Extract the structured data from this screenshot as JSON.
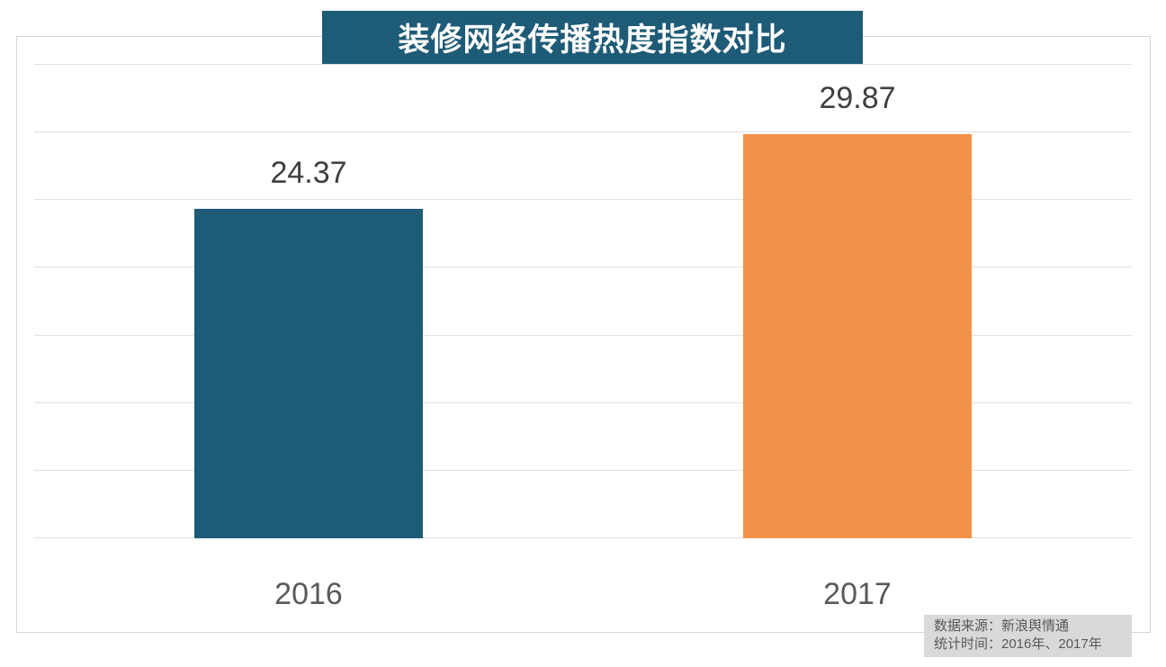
{
  "title": "装修网络传播热度指数对比",
  "note": {
    "line1": "数据来源：新浪舆情通",
    "line2": "统计时间：2016年、2017年"
  },
  "colors": {
    "banner_bg": "#1e5b76",
    "bar_2016": "#1e5b76",
    "bar_2017": "#f0924b",
    "gridline": "#e0e0e0",
    "plot_border": "#d6d6d6",
    "value_text": "#3f3f3f",
    "category_text": "#595959",
    "title_text": "#ffffff",
    "note_bg": "#d9d9d9",
    "note_text": "#595959"
  },
  "chart_data": {
    "type": "bar",
    "title": "装修网络传播热度指数对比",
    "categories": [
      "2016",
      "2017"
    ],
    "values": [
      24.37,
      29.87
    ],
    "value_labels": [
      "24.37",
      "29.87"
    ],
    "bar_colors": [
      "#1e5b76",
      "#f0924b"
    ],
    "xlabel": "",
    "ylabel": "",
    "ylim": [
      0,
      35
    ],
    "grid_step": 5,
    "grid": "horizontal-only",
    "y_axis_tick_labels": "hidden",
    "legend": "none",
    "annotations": [
      "数据来源：新浪舆情通",
      "统计时间：2016年、2017年"
    ]
  }
}
